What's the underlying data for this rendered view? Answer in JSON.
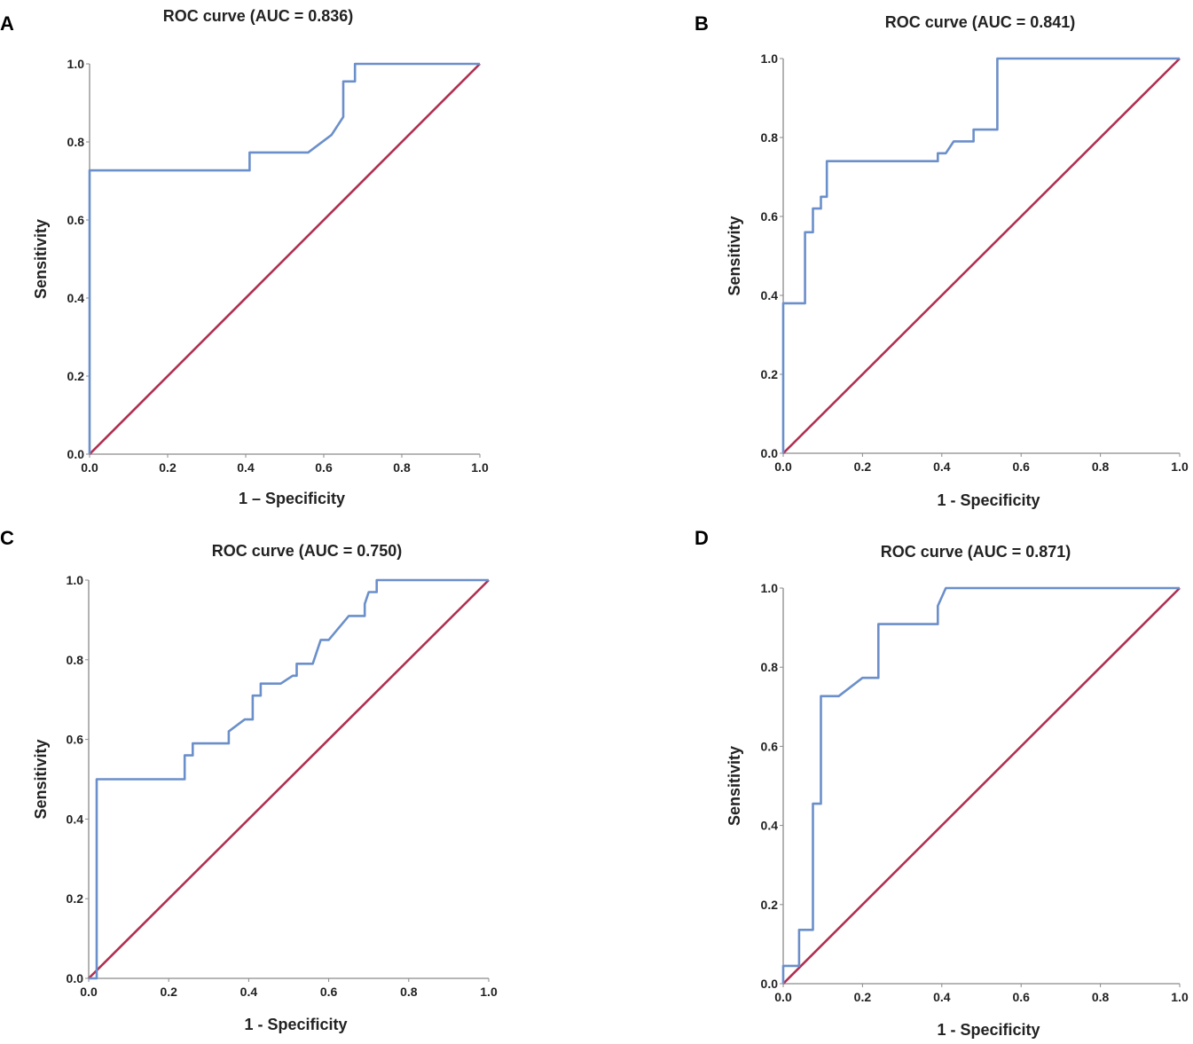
{
  "chart_data": [
    {
      "type": "line",
      "panel": "A",
      "title": "ROC curve (AUC = 0.836)",
      "xlabel": "1 – Specificity",
      "ylabel": "Sensitivity",
      "xlim": [
        0,
        1
      ],
      "ylim": [
        0,
        1
      ],
      "xticks": [
        "0.0",
        "0.2",
        "0.4",
        "0.6",
        "0.8",
        "1.0"
      ],
      "yticks": [
        "0.0",
        "0.2",
        "0.4",
        "0.6",
        "0.8",
        "1.0"
      ],
      "series": [
        {
          "name": "ROC",
          "x": [
            0,
            0,
            0.41,
            0.41,
            0.56,
            0.62,
            0.65,
            0.65,
            0.68,
            0.68,
            1.0
          ],
          "y": [
            0,
            0.727,
            0.727,
            0.773,
            0.773,
            0.818,
            0.864,
            0.955,
            0.955,
            1.0,
            1.0
          ]
        },
        {
          "name": "Reference",
          "x": [
            0,
            1
          ],
          "y": [
            0,
            1
          ]
        }
      ]
    },
    {
      "type": "line",
      "panel": "B",
      "title": "ROC curve (AUC = 0.841)",
      "xlabel": "1 - Specificity",
      "ylabel": "Sensitivity",
      "xlim": [
        0,
        1
      ],
      "ylim": [
        0,
        1
      ],
      "xticks": [
        "0.0",
        "0.2",
        "0.4",
        "0.6",
        "0.8",
        "1.0"
      ],
      "yticks": [
        "0.0",
        "0.2",
        "0.4",
        "0.6",
        "0.8",
        "1.0"
      ],
      "series": [
        {
          "name": "ROC",
          "x": [
            0,
            0,
            0.055,
            0.055,
            0.075,
            0.075,
            0.095,
            0.095,
            0.11,
            0.11,
            0.39,
            0.39,
            0.41,
            0.43,
            0.48,
            0.48,
            0.54,
            0.54,
            1.0
          ],
          "y": [
            0,
            0.38,
            0.38,
            0.56,
            0.56,
            0.62,
            0.62,
            0.65,
            0.65,
            0.74,
            0.74,
            0.76,
            0.76,
            0.79,
            0.79,
            0.82,
            0.82,
            1.0,
            1.0
          ]
        },
        {
          "name": "Reference",
          "x": [
            0,
            1
          ],
          "y": [
            0,
            1
          ]
        }
      ]
    },
    {
      "type": "line",
      "panel": "C",
      "title": "ROC curve (AUC = 0.750)",
      "xlabel": "1 - Specificity",
      "ylabel": "Sensitivity",
      "xlim": [
        0,
        1
      ],
      "ylim": [
        0,
        1
      ],
      "xticks": [
        "0.0",
        "0.2",
        "0.4",
        "0.6",
        "0.8",
        "1.0"
      ],
      "yticks": [
        "0.0",
        "0.2",
        "0.4",
        "0.6",
        "0.8",
        "1.0"
      ],
      "series": [
        {
          "name": "ROC",
          "x": [
            0,
            0.02,
            0.02,
            0.24,
            0.24,
            0.26,
            0.26,
            0.35,
            0.35,
            0.39,
            0.41,
            0.41,
            0.43,
            0.43,
            0.48,
            0.51,
            0.52,
            0.52,
            0.56,
            0.58,
            0.6,
            0.65,
            0.69,
            0.69,
            0.7,
            0.72,
            0.72,
            1.0
          ],
          "y": [
            0,
            0,
            0.5,
            0.5,
            0.56,
            0.56,
            0.59,
            0.59,
            0.62,
            0.65,
            0.65,
            0.71,
            0.71,
            0.74,
            0.74,
            0.76,
            0.76,
            0.79,
            0.79,
            0.85,
            0.85,
            0.91,
            0.91,
            0.94,
            0.97,
            0.97,
            1.0,
            1.0
          ]
        },
        {
          "name": "Reference",
          "x": [
            0,
            1
          ],
          "y": [
            0,
            1
          ]
        }
      ]
    },
    {
      "type": "line",
      "panel": "D",
      "title": "ROC curve (AUC = 0.871)",
      "xlabel": "1 - Specificity",
      "ylabel": "Sensitivity",
      "xlim": [
        0,
        1
      ],
      "ylim": [
        0,
        1
      ],
      "xticks": [
        "0.0",
        "0.2",
        "0.4",
        "0.6",
        "0.8",
        "1.0"
      ],
      "yticks": [
        "0.0",
        "0.2",
        "0.4",
        "0.6",
        "0.8",
        "1.0"
      ],
      "series": [
        {
          "name": "ROC",
          "x": [
            0,
            0,
            0.04,
            0.04,
            0.075,
            0.075,
            0.095,
            0.095,
            0.14,
            0.2,
            0.24,
            0.24,
            0.39,
            0.39,
            0.41,
            1.0
          ],
          "y": [
            0,
            0.045,
            0.045,
            0.136,
            0.136,
            0.455,
            0.455,
            0.727,
            0.727,
            0.773,
            0.773,
            0.909,
            0.909,
            0.955,
            1.0,
            1.0
          ]
        },
        {
          "name": "Reference",
          "x": [
            0,
            1
          ],
          "y": [
            0,
            1
          ]
        }
      ]
    }
  ],
  "colors": {
    "roc": "#6b8fca",
    "reference": "#b03050",
    "axis": "#8a8a8a"
  }
}
